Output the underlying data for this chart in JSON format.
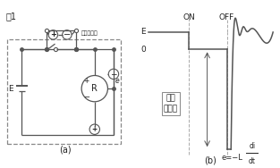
{
  "title": "图1",
  "label_a": "(a)",
  "label_b": "(b)",
  "bg_color": "#ffffff",
  "line_color": "#555555",
  "text_color": "#222222",
  "on_label": "ON",
  "off_label": "OFF",
  "e_label": "E",
  "zero_label": "0",
  "annotation_text": "数百\n～数千",
  "peak_meter_label": "峰値电压表",
  "battery_label": "E",
  "resistor_label": "R"
}
